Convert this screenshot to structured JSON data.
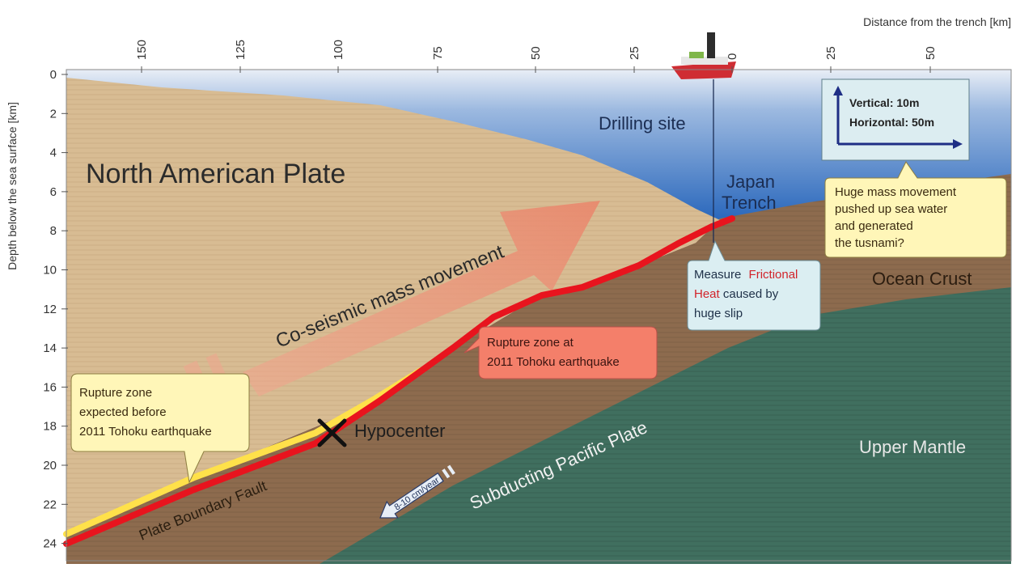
{
  "axes": {
    "top_title": "Distance from the trench [km]",
    "top_ticks": [
      "150",
      "125",
      "100",
      "75",
      "50",
      "25",
      "0",
      "25",
      "50"
    ],
    "left_title": "Depth below the sea surface [km]",
    "left_ticks": [
      "0",
      "2",
      "4",
      "6",
      "8",
      "10",
      "12",
      "14",
      "16",
      "18",
      "20",
      "22",
      "24"
    ]
  },
  "labels": {
    "north_american_plate": "North American Plate",
    "drilling_site": "Drilling site",
    "japan_trench_line1": "Japan",
    "japan_trench_line2": "Trench",
    "coseismic": "Co-seismic mass movement",
    "hypocenter": "Hypocenter",
    "plate_boundary_fault": "Plate Boundary Fault",
    "subducting_pacific": "Subducting Pacific Plate",
    "ocean_crust": "Ocean Crust",
    "upper_mantle": "Upper Mantle",
    "rate_arrow": "8-10 cm/year"
  },
  "scale_box": {
    "vertical": "Vertical: 10m",
    "horizontal": "Horizontal: 50m"
  },
  "callouts": {
    "huge_mass": [
      "Huge mass movement",
      "pushed up sea water",
      "and generated",
      "the tusnami?"
    ],
    "measure_line1": "Measure",
    "measure_frictional": "Frictional",
    "measure_heat": "Heat",
    "measure_caused": " caused by",
    "measure_line3": "huge slip",
    "rupture_2011": [
      "Rupture zone at",
      "2011 Tohoku earthquake"
    ],
    "rupture_before": [
      "Rupture zone",
      "expected before",
      "2011 Tohoku earthquake"
    ]
  },
  "colors": {
    "sea": "#2f6fc0",
    "sediment": "#d6b98f",
    "ocean_crust": "#8c6a4c",
    "mantle": "#3f6f5e",
    "fault_red": "#e8141e",
    "fault_yellow": "#ffe14a",
    "callout_yellow": "#fff6b8",
    "callout_blue": "#dbeef2",
    "callout_red": "#f47f6a"
  }
}
